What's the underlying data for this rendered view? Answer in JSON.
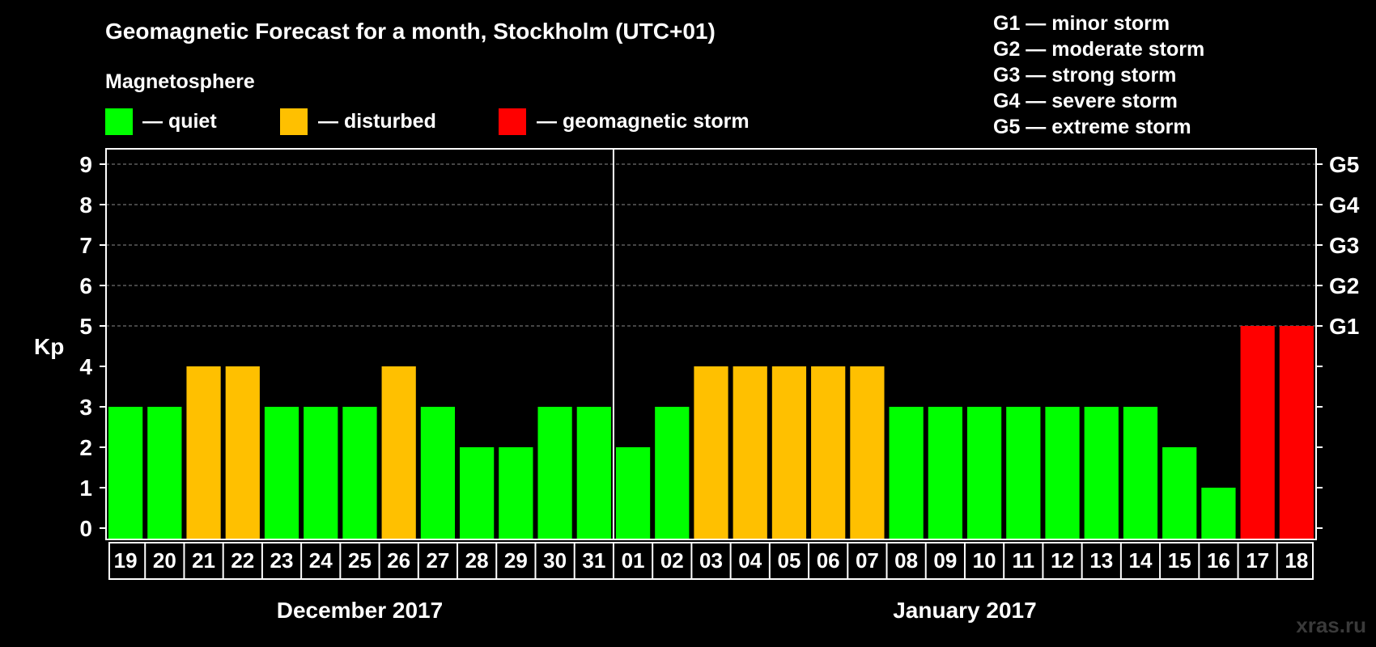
{
  "chart_data": {
    "type": "bar",
    "title": "Geomagnetic Forecast for a month, Stockholm (UTC+01)",
    "legend_title": "Magnetosphere",
    "legend": [
      {
        "label": "— quiet",
        "color": "#00ff00"
      },
      {
        "label": "— disturbed",
        "color": "#ffc000"
      },
      {
        "label": "— geomagnetic storm",
        "color": "#ff0000"
      }
    ],
    "g_scale_legend": [
      "G1 — minor storm",
      "G2 — moderate storm",
      "G3 — strong storm",
      "G4 — severe storm",
      "G5 — extreme storm"
    ],
    "ylabel": "Kp",
    "ylim": [
      0,
      9
    ],
    "yticks": [
      "0",
      "1",
      "2",
      "3",
      "4",
      "5",
      "6",
      "7",
      "8",
      "9"
    ],
    "right_axis": [
      {
        "value": 5,
        "label": "G1"
      },
      {
        "value": 6,
        "label": "G2"
      },
      {
        "value": 7,
        "label": "G3"
      },
      {
        "value": 8,
        "label": "G4"
      },
      {
        "value": 9,
        "label": "G5"
      }
    ],
    "categories": [
      "19",
      "20",
      "21",
      "22",
      "23",
      "24",
      "25",
      "26",
      "27",
      "28",
      "29",
      "30",
      "31",
      "01",
      "02",
      "03",
      "04",
      "05",
      "06",
      "07",
      "08",
      "09",
      "10",
      "11",
      "12",
      "13",
      "14",
      "15",
      "16",
      "17",
      "18"
    ],
    "values": [
      3,
      3,
      4,
      4,
      3,
      3,
      3,
      4,
      3,
      2,
      2,
      3,
      3,
      2,
      3,
      4,
      4,
      4,
      4,
      4,
      3,
      3,
      3,
      3,
      3,
      3,
      3,
      2,
      1,
      5,
      5
    ],
    "months": [
      {
        "label": "December 2017",
        "start_index": 0,
        "count": 13
      },
      {
        "label": "January 2017",
        "start_index": 13,
        "count": 18
      }
    ],
    "colors": {
      "quiet": "#00ff00",
      "disturbed": "#ffc000",
      "storm": "#ff0000",
      "background": "#000000",
      "grid": "#8a8a8a"
    }
  },
  "watermark": "xras.ru"
}
